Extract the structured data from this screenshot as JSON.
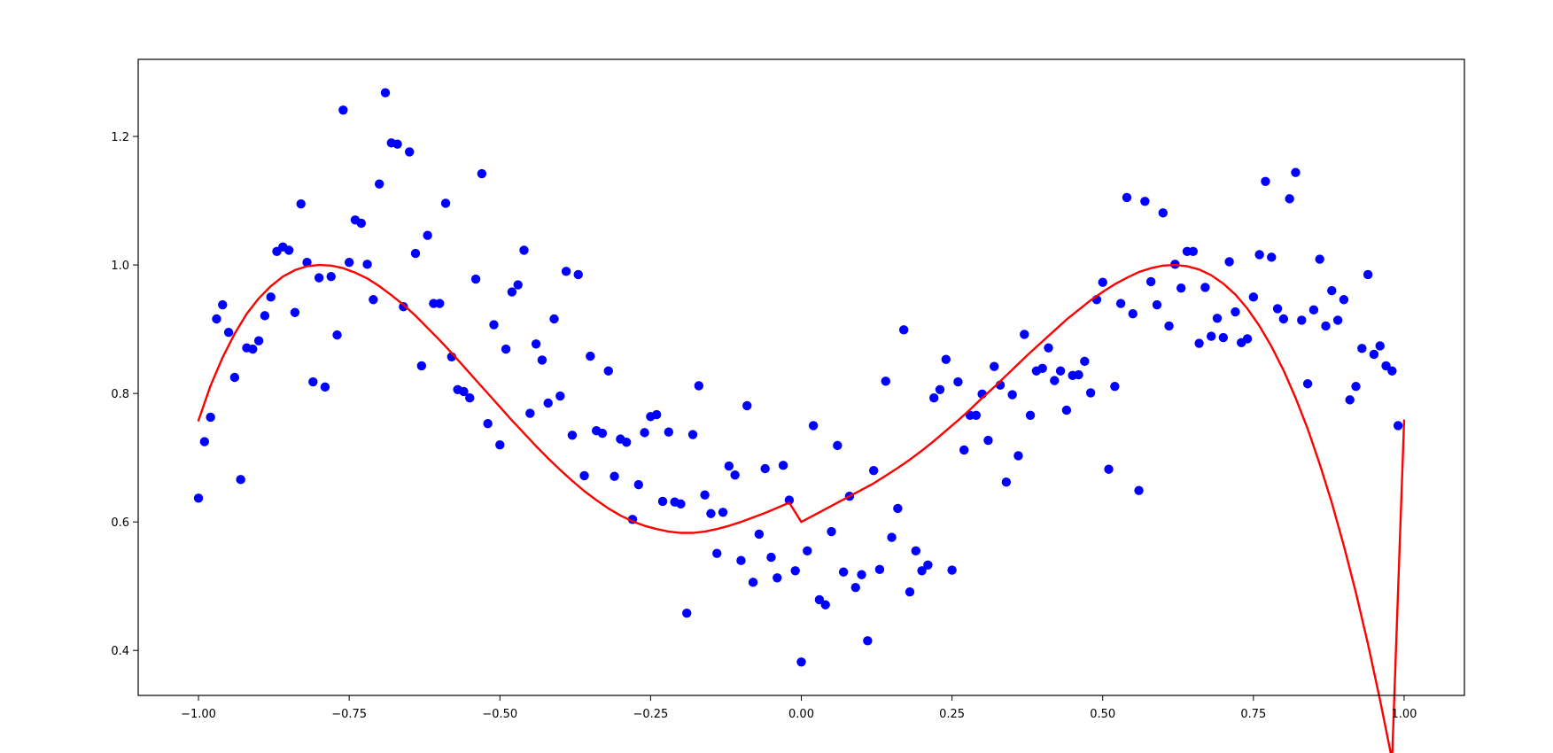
{
  "chart_data": {
    "type": "scatter",
    "title": "",
    "xlabel": "",
    "ylabel": "",
    "xlim": [
      -1.1,
      1.1
    ],
    "ylim": [
      0.33,
      1.32
    ],
    "grid": false,
    "legend": "none",
    "x_ticks": [
      {
        "value": -1.0,
        "label": "−1.00"
      },
      {
        "value": -0.75,
        "label": "−0.75"
      },
      {
        "value": -0.5,
        "label": "−0.50"
      },
      {
        "value": -0.25,
        "label": "−0.25"
      },
      {
        "value": 0.0,
        "label": "0.00"
      },
      {
        "value": 0.25,
        "label": "0.25"
      },
      {
        "value": 0.5,
        "label": "0.50"
      },
      {
        "value": 0.75,
        "label": "0.75"
      },
      {
        "value": 1.0,
        "label": "1.00"
      }
    ],
    "y_ticks": [
      {
        "value": 0.4,
        "label": "0.4"
      },
      {
        "value": 0.6,
        "label": "0.6"
      },
      {
        "value": 0.8,
        "label": "0.8"
      },
      {
        "value": 1.0,
        "label": "1.0"
      },
      {
        "value": 1.2,
        "label": "1.2"
      }
    ],
    "series": [
      {
        "type": "scatter",
        "color": "#0000ff",
        "points": [
          [
            -1.0,
            0.637
          ],
          [
            -0.99,
            0.725
          ],
          [
            -0.98,
            0.763
          ],
          [
            -0.97,
            0.916
          ],
          [
            -0.96,
            0.938
          ],
          [
            -0.95,
            0.895
          ],
          [
            -0.94,
            0.825
          ],
          [
            -0.93,
            0.666
          ],
          [
            -0.92,
            0.871
          ],
          [
            -0.91,
            0.869
          ],
          [
            -0.9,
            0.882
          ],
          [
            -0.89,
            0.921
          ],
          [
            -0.88,
            0.95
          ],
          [
            -0.87,
            1.021
          ],
          [
            -0.86,
            1.028
          ],
          [
            -0.85,
            1.023
          ],
          [
            -0.84,
            0.926
          ],
          [
            -0.83,
            1.095
          ],
          [
            -0.82,
            1.004
          ],
          [
            -0.81,
            0.818
          ],
          [
            -0.8,
            0.98
          ],
          [
            -0.79,
            0.81
          ],
          [
            -0.78,
            0.982
          ],
          [
            -0.77,
            0.891
          ],
          [
            -0.76,
            1.241
          ],
          [
            -0.75,
            1.004
          ],
          [
            -0.74,
            1.07
          ],
          [
            -0.73,
            1.065
          ],
          [
            -0.72,
            1.001
          ],
          [
            -0.71,
            0.946
          ],
          [
            -0.7,
            1.126
          ],
          [
            -0.69,
            1.268
          ],
          [
            -0.68,
            1.19
          ],
          [
            -0.67,
            1.188
          ],
          [
            -0.66,
            0.935
          ],
          [
            -0.65,
            1.176
          ],
          [
            -0.64,
            1.018
          ],
          [
            -0.63,
            0.843
          ],
          [
            -0.62,
            1.046
          ],
          [
            -0.61,
            0.94
          ],
          [
            -0.6,
            0.94
          ],
          [
            -0.59,
            1.096
          ],
          [
            -0.58,
            0.857
          ],
          [
            -0.57,
            0.806
          ],
          [
            -0.56,
            0.803
          ],
          [
            -0.55,
            0.793
          ],
          [
            -0.54,
            0.978
          ],
          [
            -0.53,
            1.142
          ],
          [
            -0.52,
            0.753
          ],
          [
            -0.51,
            0.907
          ],
          [
            -0.5,
            0.72
          ],
          [
            -0.49,
            0.869
          ],
          [
            -0.48,
            0.958
          ],
          [
            -0.47,
            0.969
          ],
          [
            -0.46,
            1.023
          ],
          [
            -0.45,
            0.769
          ],
          [
            -0.44,
            0.877
          ],
          [
            -0.43,
            0.852
          ],
          [
            -0.42,
            0.785
          ],
          [
            -0.41,
            0.916
          ],
          [
            -0.4,
            0.796
          ],
          [
            -0.39,
            0.99
          ],
          [
            -0.38,
            0.735
          ],
          [
            -0.37,
            0.985
          ],
          [
            -0.36,
            0.672
          ],
          [
            -0.35,
            0.858
          ],
          [
            -0.34,
            0.742
          ],
          [
            -0.33,
            0.738
          ],
          [
            -0.32,
            0.835
          ],
          [
            -0.31,
            0.671
          ],
          [
            -0.3,
            0.729
          ],
          [
            -0.29,
            0.724
          ],
          [
            -0.28,
            0.604
          ],
          [
            -0.27,
            0.658
          ],
          [
            -0.26,
            0.739
          ],
          [
            -0.25,
            0.764
          ],
          [
            -0.24,
            0.767
          ],
          [
            -0.23,
            0.632
          ],
          [
            -0.22,
            0.74
          ],
          [
            -0.21,
            0.631
          ],
          [
            -0.2,
            0.628
          ],
          [
            -0.19,
            0.458
          ],
          [
            -0.18,
            0.736
          ],
          [
            -0.17,
            0.812
          ],
          [
            -0.16,
            0.642
          ],
          [
            -0.15,
            0.613
          ],
          [
            -0.14,
            0.551
          ],
          [
            -0.13,
            0.615
          ],
          [
            -0.12,
            0.687
          ],
          [
            -0.11,
            0.673
          ],
          [
            -0.1,
            0.54
          ],
          [
            -0.09,
            0.781
          ],
          [
            -0.08,
            0.506
          ],
          [
            -0.07,
            0.581
          ],
          [
            -0.06,
            0.683
          ],
          [
            -0.05,
            0.545
          ],
          [
            -0.04,
            0.513
          ],
          [
            -0.03,
            0.688
          ],
          [
            -0.02,
            0.634
          ],
          [
            -0.01,
            0.524
          ],
          [
            0.0,
            0.382
          ],
          [
            0.01,
            0.555
          ],
          [
            0.02,
            0.75
          ],
          [
            0.03,
            0.479
          ],
          [
            0.04,
            0.471
          ],
          [
            0.05,
            0.585
          ],
          [
            0.06,
            0.719
          ],
          [
            0.07,
            0.522
          ],
          [
            0.08,
            0.64
          ],
          [
            0.09,
            0.498
          ],
          [
            0.1,
            0.518
          ],
          [
            0.11,
            0.415
          ],
          [
            0.12,
            0.68
          ],
          [
            0.13,
            0.526
          ],
          [
            0.14,
            0.819
          ],
          [
            0.15,
            0.576
          ],
          [
            0.16,
            0.621
          ],
          [
            0.17,
            0.899
          ],
          [
            0.18,
            0.491
          ],
          [
            0.19,
            0.555
          ],
          [
            0.2,
            0.524
          ],
          [
            0.21,
            0.533
          ],
          [
            0.22,
            0.793
          ],
          [
            0.23,
            0.806
          ],
          [
            0.24,
            0.853
          ],
          [
            0.25,
            0.525
          ],
          [
            0.26,
            0.818
          ],
          [
            0.27,
            0.712
          ],
          [
            0.28,
            0.766
          ],
          [
            0.29,
            0.766
          ],
          [
            0.3,
            0.799
          ],
          [
            0.31,
            0.727
          ],
          [
            0.32,
            0.842
          ],
          [
            0.33,
            0.813
          ],
          [
            0.34,
            0.662
          ],
          [
            0.35,
            0.798
          ],
          [
            0.36,
            0.703
          ],
          [
            0.37,
            0.892
          ],
          [
            0.38,
            0.766
          ],
          [
            0.39,
            0.835
          ],
          [
            0.4,
            0.839
          ],
          [
            0.41,
            0.871
          ],
          [
            0.42,
            0.82
          ],
          [
            0.43,
            0.835
          ],
          [
            0.44,
            0.774
          ],
          [
            0.45,
            0.828
          ],
          [
            0.46,
            0.829
          ],
          [
            0.47,
            0.85
          ],
          [
            0.48,
            0.801
          ],
          [
            0.49,
            0.946
          ],
          [
            0.5,
            0.973
          ],
          [
            0.51,
            0.682
          ],
          [
            0.52,
            0.811
          ],
          [
            0.53,
            0.94
          ],
          [
            0.54,
            1.105
          ],
          [
            0.55,
            0.924
          ],
          [
            0.56,
            0.649
          ],
          [
            0.57,
            1.099
          ],
          [
            0.58,
            0.974
          ],
          [
            0.59,
            0.938
          ],
          [
            0.6,
            1.081
          ],
          [
            0.61,
            0.905
          ],
          [
            0.62,
            1.001
          ],
          [
            0.63,
            0.964
          ],
          [
            0.64,
            1.021
          ],
          [
            0.65,
            1.021
          ],
          [
            0.66,
            0.878
          ],
          [
            0.67,
            0.965
          ],
          [
            0.68,
            0.889
          ],
          [
            0.69,
            0.917
          ],
          [
            0.7,
            0.887
          ],
          [
            0.71,
            1.005
          ],
          [
            0.72,
            0.927
          ],
          [
            0.73,
            0.879
          ],
          [
            0.74,
            0.885
          ],
          [
            0.75,
            0.95
          ],
          [
            0.76,
            1.016
          ],
          [
            0.77,
            1.13
          ],
          [
            0.78,
            1.012
          ],
          [
            0.79,
            0.932
          ],
          [
            0.8,
            0.916
          ],
          [
            0.81,
            1.103
          ],
          [
            0.82,
            1.144
          ],
          [
            0.83,
            0.914
          ],
          [
            0.84,
            0.815
          ],
          [
            0.85,
            0.93
          ],
          [
            0.86,
            1.009
          ],
          [
            0.87,
            0.905
          ],
          [
            0.88,
            0.96
          ],
          [
            0.89,
            0.914
          ],
          [
            0.9,
            0.946
          ],
          [
            0.91,
            0.79
          ],
          [
            0.92,
            0.811
          ],
          [
            0.93,
            0.87
          ],
          [
            0.94,
            0.985
          ],
          [
            0.95,
            0.861
          ],
          [
            0.96,
            0.874
          ],
          [
            0.97,
            0.843
          ],
          [
            0.98,
            0.835
          ],
          [
            0.99,
            0.75
          ]
        ]
      },
      {
        "type": "line",
        "color": "#ff0000",
        "points": [
          [
            -1.0,
            0.758
          ],
          [
            -0.98,
            0.812
          ],
          [
            -0.96,
            0.856
          ],
          [
            -0.94,
            0.893
          ],
          [
            -0.92,
            0.924
          ],
          [
            -0.9,
            0.948
          ],
          [
            -0.88,
            0.967
          ],
          [
            -0.86,
            0.982
          ],
          [
            -0.84,
            0.992
          ],
          [
            -0.82,
            0.998
          ],
          [
            -0.8,
            1.0
          ],
          [
            -0.78,
            0.999
          ],
          [
            -0.76,
            0.995
          ],
          [
            -0.74,
            0.988
          ],
          [
            -0.72,
            0.979
          ],
          [
            -0.7,
            0.967
          ],
          [
            -0.68,
            0.953
          ],
          [
            -0.66,
            0.938
          ],
          [
            -0.64,
            0.921
          ],
          [
            -0.62,
            0.902
          ],
          [
            -0.6,
            0.883
          ],
          [
            -0.58,
            0.863
          ],
          [
            -0.56,
            0.842
          ],
          [
            -0.54,
            0.821
          ],
          [
            -0.52,
            0.8
          ],
          [
            -0.5,
            0.779
          ],
          [
            -0.48,
            0.758
          ],
          [
            -0.46,
            0.738
          ],
          [
            -0.44,
            0.718
          ],
          [
            -0.42,
            0.699
          ],
          [
            -0.4,
            0.681
          ],
          [
            -0.38,
            0.664
          ],
          [
            -0.36,
            0.648
          ],
          [
            -0.34,
            0.634
          ],
          [
            -0.32,
            0.621
          ],
          [
            -0.3,
            0.61
          ],
          [
            -0.28,
            0.601
          ],
          [
            -0.26,
            0.594
          ],
          [
            -0.24,
            0.589
          ],
          [
            -0.22,
            0.585
          ],
          [
            -0.2,
            0.583
          ],
          [
            -0.18,
            0.583
          ],
          [
            -0.16,
            0.585
          ],
          [
            -0.14,
            0.589
          ],
          [
            -0.12,
            0.594
          ],
          [
            -0.1,
            0.6
          ],
          [
            -0.08,
            0.607
          ],
          [
            -0.06,
            0.614
          ],
          [
            -0.04,
            0.622
          ],
          [
            -0.02,
            0.63
          ],
          [
            0.0,
            0.6
          ],
          [
            0.02,
            0.61
          ],
          [
            0.04,
            0.62
          ],
          [
            0.06,
            0.63
          ],
          [
            0.08,
            0.64
          ],
          [
            0.1,
            0.65
          ],
          [
            0.12,
            0.66
          ],
          [
            0.14,
            0.672
          ],
          [
            0.16,
            0.684
          ],
          [
            0.18,
            0.697
          ],
          [
            0.2,
            0.711
          ],
          [
            0.22,
            0.726
          ],
          [
            0.24,
            0.742
          ],
          [
            0.26,
            0.758
          ],
          [
            0.28,
            0.775
          ],
          [
            0.3,
            0.793
          ],
          [
            0.32,
            0.81
          ],
          [
            0.34,
            0.828
          ],
          [
            0.36,
            0.846
          ],
          [
            0.38,
            0.864
          ],
          [
            0.4,
            0.881
          ],
          [
            0.42,
            0.898
          ],
          [
            0.44,
            0.915
          ],
          [
            0.46,
            0.93
          ],
          [
            0.48,
            0.945
          ],
          [
            0.5,
            0.958
          ],
          [
            0.52,
            0.97
          ],
          [
            0.54,
            0.98
          ],
          [
            0.56,
            0.989
          ],
          [
            0.58,
            0.995
          ],
          [
            0.6,
            0.999
          ],
          [
            0.62,
            1.0
          ],
          [
            0.64,
            0.998
          ],
          [
            0.66,
            0.993
          ],
          [
            0.68,
            0.984
          ],
          [
            0.7,
            0.971
          ],
          [
            0.72,
            0.954
          ],
          [
            0.74,
            0.932
          ],
          [
            0.76,
            0.905
          ],
          [
            0.78,
            0.873
          ],
          [
            0.8,
            0.836
          ],
          [
            0.82,
            0.793
          ],
          [
            0.84,
            0.745
          ],
          [
            0.86,
            0.69
          ],
          [
            0.88,
            0.63
          ],
          [
            0.9,
            0.563
          ],
          [
            0.92,
            0.49
          ],
          [
            0.94,
            0.41
          ],
          [
            0.96,
            0.323
          ],
          [
            0.98,
            0.23
          ],
          [
            1.0,
            0.758
          ]
        ]
      }
    ]
  }
}
